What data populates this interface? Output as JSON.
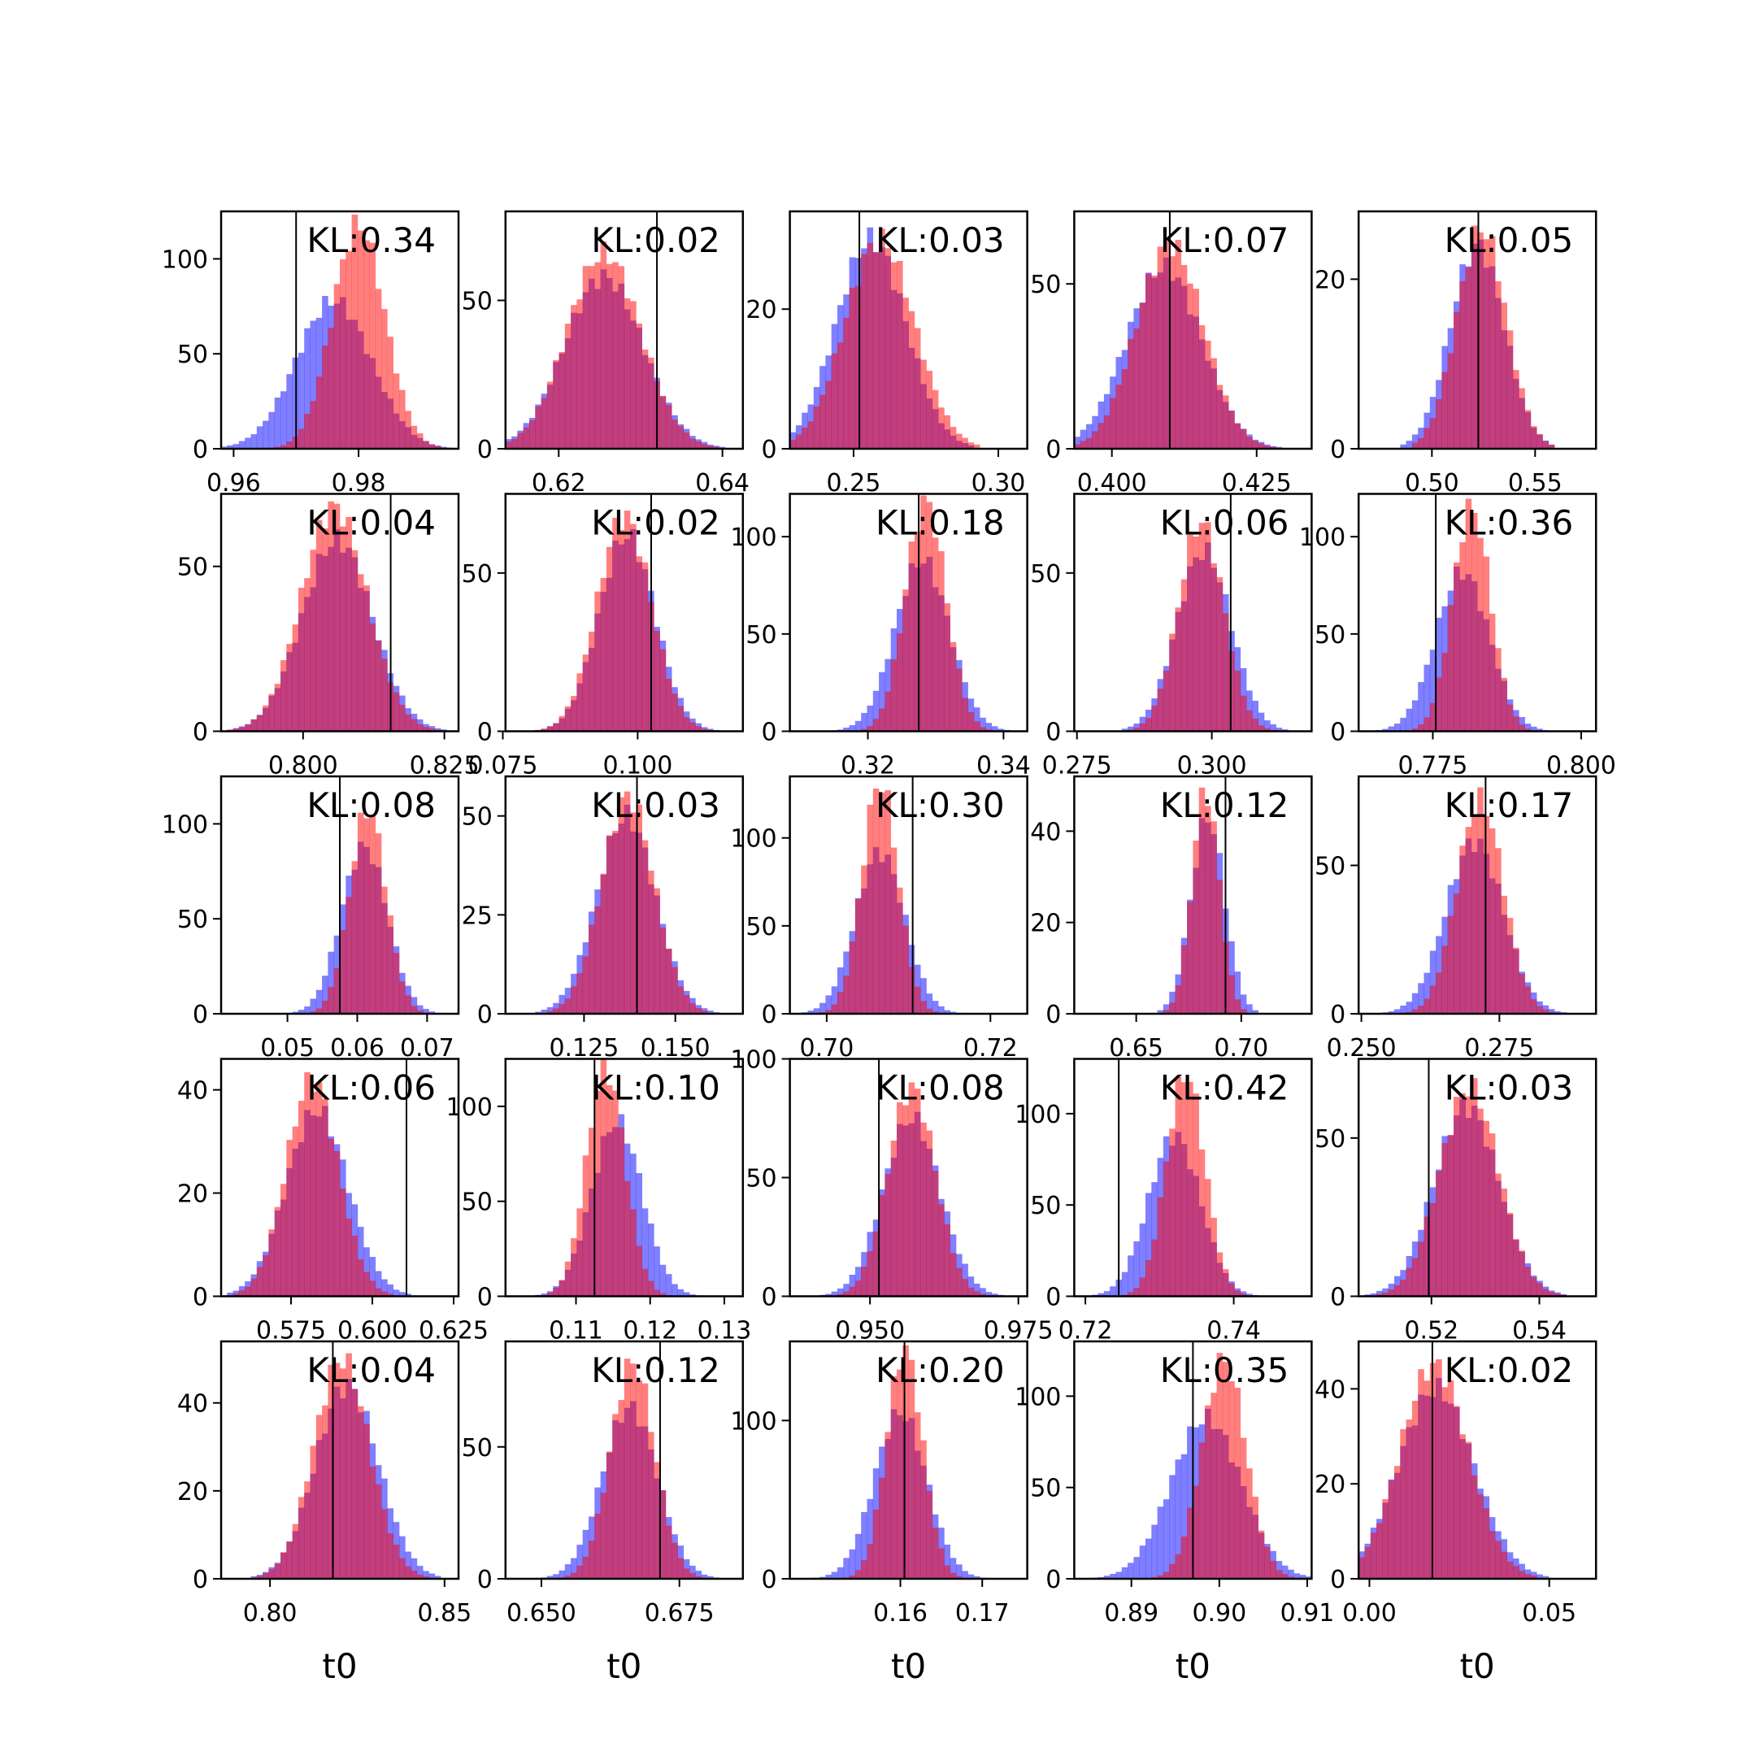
{
  "figure": {
    "xlabel": "t0"
  },
  "colors": {
    "red_series": "#ff0000",
    "blue_series": "#0000ff",
    "red_alpha": 0.5,
    "blue_alpha": 0.5,
    "overlap_appearance": "#8040c0",
    "truth_line": "#000000",
    "frame": "#000000"
  },
  "layout": {
    "rows": 5,
    "cols": 5,
    "kl_label_position": "top-right"
  },
  "chart_data": [
    {
      "type": "histogram",
      "row": 0,
      "col": 0,
      "kl_label": "KL:0.34",
      "truth": 0.97,
      "xlim": [
        0.958,
        0.996
      ],
      "xticks": [
        0.96,
        0.98
      ],
      "xtick_labels": [
        "0.96",
        "0.98"
      ],
      "ylim": [
        0,
        125
      ],
      "yticks": [
        0,
        50,
        100
      ],
      "ytick_labels": [
        "0",
        "50",
        "100"
      ],
      "red": {
        "mean": 0.98,
        "std": 0.0042,
        "peak": 118
      },
      "blue": {
        "mean": 0.976,
        "std": 0.006,
        "peak": 78
      }
    },
    {
      "type": "histogram",
      "row": 0,
      "col": 1,
      "kl_label": "KL:0.02",
      "truth": 0.632,
      "xlim": [
        0.6135,
        0.6425
      ],
      "xticks": [
        0.62,
        0.64
      ],
      "xtick_labels": [
        "0.62",
        "0.64"
      ],
      "ylim": [
        0,
        80
      ],
      "yticks": [
        0,
        50
      ],
      "ytick_labels": [
        "0",
        "50"
      ],
      "red": {
        "mean": 0.6255,
        "std": 0.0045,
        "peak": 66
      },
      "blue": {
        "mean": 0.6255,
        "std": 0.0048,
        "peak": 58
      }
    },
    {
      "type": "histogram",
      "row": 0,
      "col": 2,
      "kl_label": "KL:0.03",
      "truth": 0.252,
      "xlim": [
        0.228,
        0.31
      ],
      "xticks": [
        0.25,
        0.3
      ],
      "xtick_labels": [
        "0.25",
        "0.30"
      ],
      "ylim": [
        0,
        34
      ],
      "yticks": [
        0,
        20
      ],
      "ytick_labels": [
        "0",
        "20"
      ],
      "red": {
        "mean": 0.259,
        "std": 0.012,
        "peak": 30
      },
      "blue": {
        "mean": 0.256,
        "std": 0.012,
        "peak": 30
      }
    },
    {
      "type": "histogram",
      "row": 0,
      "col": 3,
      "kl_label": "KL:0.07",
      "truth": 0.41,
      "xlim": [
        0.3935,
        0.4345
      ],
      "xticks": [
        0.4,
        0.425
      ],
      "xtick_labels": [
        "0.400",
        "0.425"
      ],
      "ylim": [
        0,
        72
      ],
      "yticks": [
        0,
        50
      ],
      "ytick_labels": [
        "0",
        "50"
      ],
      "red": {
        "mean": 0.41,
        "std": 0.0058,
        "peak": 62
      },
      "blue": {
        "mean": 0.409,
        "std": 0.0065,
        "peak": 55
      }
    },
    {
      "type": "histogram",
      "row": 0,
      "col": 4,
      "kl_label": "KL:0.05",
      "truth": 0.5225,
      "xlim": [
        0.4645,
        0.5795
      ],
      "xticks": [
        0.5,
        0.55
      ],
      "xtick_labels": [
        "0.50",
        "0.55"
      ],
      "ylim": [
        0,
        28
      ],
      "yticks": [
        0,
        20
      ],
      "ytick_labels": [
        "0",
        "20"
      ],
      "red": {
        "mean": 0.524,
        "std": 0.012,
        "peak": 26
      },
      "blue": {
        "mean": 0.522,
        "std": 0.013,
        "peak": 24
      }
    },
    {
      "type": "histogram",
      "row": 1,
      "col": 0,
      "kl_label": "KL:0.04",
      "truth": 0.8155,
      "xlim": [
        0.7855,
        0.8275
      ],
      "xticks": [
        0.8,
        0.825
      ],
      "xtick_labels": [
        "0.800",
        "0.825"
      ],
      "ylim": [
        0,
        72
      ],
      "yticks": [
        0,
        50
      ],
      "ytick_labels": [
        "0",
        "50"
      ],
      "red": {
        "mean": 0.8055,
        "std": 0.0058,
        "peak": 68
      },
      "blue": {
        "mean": 0.806,
        "std": 0.0062,
        "peak": 58
      }
    },
    {
      "type": "histogram",
      "row": 1,
      "col": 1,
      "kl_label": "KL:0.02",
      "truth": 0.1025,
      "xlim": [
        0.0755,
        0.1195
      ],
      "xticks": [
        0.075,
        0.1
      ],
      "xtick_labels": [
        "0.075",
        "0.100"
      ],
      "ylim": [
        0,
        75
      ],
      "yticks": [
        0,
        50
      ],
      "ytick_labels": [
        "0",
        "50"
      ],
      "red": {
        "mean": 0.0975,
        "std": 0.005,
        "peak": 68
      },
      "blue": {
        "mean": 0.098,
        "std": 0.0052,
        "peak": 62
      }
    },
    {
      "type": "histogram",
      "row": 1,
      "col": 2,
      "kl_label": "KL:0.18",
      "truth": 0.3275,
      "xlim": [
        0.3085,
        0.3435
      ],
      "xticks": [
        0.32,
        0.34
      ],
      "xtick_labels": [
        "0.32",
        "0.34"
      ],
      "ylim": [
        0,
        122
      ],
      "yticks": [
        0,
        50,
        100
      ],
      "ytick_labels": [
        "0",
        "50",
        "100"
      ],
      "red": {
        "mean": 0.3285,
        "std": 0.003,
        "peak": 118
      },
      "blue": {
        "mean": 0.328,
        "std": 0.004,
        "peak": 88
      }
    },
    {
      "type": "histogram",
      "row": 1,
      "col": 3,
      "kl_label": "KL:0.06",
      "truth": 0.3035,
      "xlim": [
        0.2745,
        0.3185
      ],
      "xticks": [
        0.275,
        0.3
      ],
      "xtick_labels": [
        "0.275",
        "0.300"
      ],
      "ylim": [
        0,
        75
      ],
      "yticks": [
        0,
        50
      ],
      "ytick_labels": [
        "0",
        "50"
      ],
      "red": {
        "mean": 0.298,
        "std": 0.0042,
        "peak": 66
      },
      "blue": {
        "mean": 0.2985,
        "std": 0.005,
        "peak": 57
      }
    },
    {
      "type": "histogram",
      "row": 1,
      "col": 4,
      "kl_label": "KL:0.36",
      "truth": 0.7755,
      "xlim": [
        0.7625,
        0.8025
      ],
      "xticks": [
        0.775,
        0.8
      ],
      "xtick_labels": [
        "0.775",
        "0.800"
      ],
      "ylim": [
        0,
        122
      ],
      "yticks": [
        0,
        50,
        100
      ],
      "ytick_labels": [
        "0",
        "50",
        "100"
      ],
      "red": {
        "mean": 0.7815,
        "std": 0.0032,
        "peak": 115
      },
      "blue": {
        "mean": 0.78,
        "std": 0.0045,
        "peak": 82
      }
    },
    {
      "type": "histogram",
      "row": 2,
      "col": 0,
      "kl_label": "KL:0.08",
      "truth": 0.0575,
      "xlim": [
        0.0405,
        0.0745
      ],
      "xticks": [
        0.05,
        0.06,
        0.07
      ],
      "xtick_labels": [
        "0.05",
        "0.06",
        "0.07"
      ],
      "ylim": [
        0,
        125
      ],
      "yticks": [
        0,
        50,
        100
      ],
      "ytick_labels": [
        "0",
        "50",
        "100"
      ],
      "red": {
        "mean": 0.0615,
        "std": 0.0026,
        "peak": 108
      },
      "blue": {
        "mean": 0.061,
        "std": 0.0033,
        "peak": 88
      }
    },
    {
      "type": "histogram",
      "row": 2,
      "col": 1,
      "kl_label": "KL:0.03",
      "truth": 0.1395,
      "xlim": [
        0.1035,
        0.1685
      ],
      "xticks": [
        0.125,
        0.15
      ],
      "xtick_labels": [
        "0.125",
        "0.150"
      ],
      "ylim": [
        0,
        60
      ],
      "yticks": [
        0,
        25,
        50
      ],
      "ytick_labels": [
        "0",
        "25",
        "50"
      ],
      "red": {
        "mean": 0.137,
        "std": 0.0072,
        "peak": 55
      },
      "blue": {
        "mean": 0.1365,
        "std": 0.008,
        "peak": 50
      }
    },
    {
      "type": "histogram",
      "row": 2,
      "col": 2,
      "kl_label": "KL:0.30",
      "truth": 0.7105,
      "xlim": [
        0.6955,
        0.7245
      ],
      "xticks": [
        0.7,
        0.72
      ],
      "xtick_labels": [
        "0.70",
        "0.72"
      ],
      "ylim": [
        0,
        135
      ],
      "yticks": [
        0,
        50,
        100
      ],
      "ytick_labels": [
        "0",
        "50",
        "100"
      ],
      "red": {
        "mean": 0.7065,
        "std": 0.0022,
        "peak": 132
      },
      "blue": {
        "mean": 0.7065,
        "std": 0.003,
        "peak": 92
      }
    },
    {
      "type": "histogram",
      "row": 2,
      "col": 3,
      "kl_label": "KL:0.12",
      "truth": 0.6925,
      "xlim": [
        0.6205,
        0.7335
      ],
      "xticks": [
        0.65,
        0.7
      ],
      "xtick_labels": [
        "0.65",
        "0.70"
      ],
      "ylim": [
        0,
        52
      ],
      "yticks": [
        0,
        20,
        40
      ],
      "ytick_labels": [
        "0",
        "20",
        "40"
      ],
      "red": {
        "mean": 0.683,
        "std": 0.0065,
        "peak": 49
      },
      "blue": {
        "mean": 0.684,
        "std": 0.008,
        "peak": 43
      }
    },
    {
      "type": "histogram",
      "row": 2,
      "col": 4,
      "kl_label": "KL:0.17",
      "truth": 0.2725,
      "xlim": [
        0.2495,
        0.2925
      ],
      "xticks": [
        0.25,
        0.275
      ],
      "xtick_labels": [
        "0.250",
        "0.275"
      ],
      "ylim": [
        0,
        80
      ],
      "yticks": [
        0,
        50
      ],
      "ytick_labels": [
        "0",
        "50"
      ],
      "red": {
        "mean": 0.2715,
        "std": 0.0042,
        "peak": 72
      },
      "blue": {
        "mean": 0.2705,
        "std": 0.0052,
        "peak": 58
      }
    },
    {
      "type": "histogram",
      "row": 3,
      "col": 0,
      "kl_label": "KL:0.06",
      "truth": 0.6105,
      "xlim": [
        0.5535,
        0.6265
      ],
      "xticks": [
        0.575,
        0.6,
        0.625
      ],
      "xtick_labels": [
        "0.575",
        "0.600",
        "0.625"
      ],
      "ylim": [
        0,
        46
      ],
      "yticks": [
        0,
        20,
        40
      ],
      "ytick_labels": [
        "0",
        "20",
        "40"
      ],
      "red": {
        "mean": 0.5815,
        "std": 0.008,
        "peak": 42
      },
      "blue": {
        "mean": 0.583,
        "std": 0.0095,
        "peak": 36
      }
    },
    {
      "type": "histogram",
      "row": 3,
      "col": 1,
      "kl_label": "KL:0.10",
      "truth": 0.1125,
      "xlim": [
        0.1005,
        0.1325
      ],
      "xticks": [
        0.11,
        0.12,
        0.13
      ],
      "xtick_labels": [
        "0.11",
        "0.12",
        "0.13"
      ],
      "ylim": [
        0,
        125
      ],
      "yticks": [
        0,
        50,
        100
      ],
      "ytick_labels": [
        "0",
        "50",
        "100"
      ],
      "red": {
        "mean": 0.114,
        "std": 0.0026,
        "peak": 120
      },
      "blue": {
        "mean": 0.1155,
        "std": 0.0034,
        "peak": 92
      }
    },
    {
      "type": "histogram",
      "row": 3,
      "col": 2,
      "kl_label": "KL:0.08",
      "truth": 0.9515,
      "xlim": [
        0.9365,
        0.9765
      ],
      "xticks": [
        0.95,
        0.975
      ],
      "xtick_labels": [
        "0.950",
        "0.975"
      ],
      "ylim": [
        0,
        100
      ],
      "yticks": [
        0,
        50,
        100
      ],
      "ytick_labels": [
        "0",
        "50",
        "100"
      ],
      "red": {
        "mean": 0.957,
        "std": 0.004,
        "peak": 88
      },
      "blue": {
        "mean": 0.957,
        "std": 0.0048,
        "peak": 75
      }
    },
    {
      "type": "histogram",
      "row": 3,
      "col": 3,
      "kl_label": "KL:0.42",
      "truth": 0.7245,
      "xlim": [
        0.7185,
        0.7505
      ],
      "xticks": [
        0.72,
        0.74
      ],
      "xtick_labels": [
        "0.72",
        "0.74"
      ],
      "ylim": [
        0,
        130
      ],
      "yticks": [
        0,
        50,
        100
      ],
      "ytick_labels": [
        "0",
        "50",
        "100"
      ],
      "red": {
        "mean": 0.7335,
        "std": 0.0026,
        "peak": 122
      },
      "blue": {
        "mean": 0.732,
        "std": 0.0035,
        "peak": 88
      }
    },
    {
      "type": "histogram",
      "row": 3,
      "col": 4,
      "kl_label": "KL:0.03",
      "truth": 0.5195,
      "xlim": [
        0.5065,
        0.5505
      ],
      "xticks": [
        0.52,
        0.54
      ],
      "xtick_labels": [
        "0.52",
        "0.54"
      ],
      "ylim": [
        0,
        75
      ],
      "yticks": [
        0,
        50
      ],
      "ytick_labels": [
        "0",
        "50"
      ],
      "red": {
        "mean": 0.527,
        "std": 0.0055,
        "peak": 66
      },
      "blue": {
        "mean": 0.5265,
        "std": 0.006,
        "peak": 60
      }
    },
    {
      "type": "histogram",
      "row": 4,
      "col": 0,
      "kl_label": "KL:0.04",
      "truth": 0.818,
      "xlim": [
        0.786,
        0.854
      ],
      "xticks": [
        0.8,
        0.85
      ],
      "xtick_labels": [
        "0.80",
        "0.85"
      ],
      "ylim": [
        0,
        54
      ],
      "yticks": [
        0,
        20,
        40
      ],
      "ytick_labels": [
        "0",
        "20",
        "40"
      ],
      "red": {
        "mean": 0.8205,
        "std": 0.008,
        "peak": 50
      },
      "blue": {
        "mean": 0.822,
        "std": 0.009,
        "peak": 44
      }
    },
    {
      "type": "histogram",
      "row": 4,
      "col": 1,
      "kl_label": "KL:0.12",
      "truth": 0.6715,
      "xlim": [
        0.6435,
        0.6865
      ],
      "xticks": [
        0.65,
        0.675
      ],
      "xtick_labels": [
        "0.650",
        "0.675"
      ],
      "ylim": [
        0,
        90
      ],
      "yticks": [
        0,
        50
      ],
      "ytick_labels": [
        "0",
        "50"
      ],
      "red": {
        "mean": 0.6665,
        "std": 0.004,
        "peak": 82
      },
      "blue": {
        "mean": 0.666,
        "std": 0.005,
        "peak": 65
      }
    },
    {
      "type": "histogram",
      "row": 4,
      "col": 2,
      "kl_label": "KL:0.20",
      "truth": 0.1605,
      "xlim": [
        0.1465,
        0.1755
      ],
      "xticks": [
        0.16,
        0.17
      ],
      "xtick_labels": [
        "0.16",
        "0.17"
      ],
      "ylim": [
        0,
        150
      ],
      "yticks": [
        0,
        100
      ],
      "ytick_labels": [
        "0",
        "100"
      ],
      "red": {
        "mean": 0.1605,
        "std": 0.0022,
        "peak": 145
      },
      "blue": {
        "mean": 0.16,
        "std": 0.0032,
        "peak": 105
      }
    },
    {
      "type": "histogram",
      "row": 4,
      "col": 3,
      "kl_label": "KL:0.35",
      "truth": 0.897,
      "xlim": [
        0.8835,
        0.9105
      ],
      "xticks": [
        0.89,
        0.9,
        0.91
      ],
      "xtick_labels": [
        "0.89",
        "0.90",
        "0.91"
      ],
      "ylim": [
        0,
        130
      ],
      "yticks": [
        0,
        50,
        100
      ],
      "ytick_labels": [
        "0",
        "50",
        "100"
      ],
      "red": {
        "mean": 0.9005,
        "std": 0.0025,
        "peak": 120
      },
      "blue": {
        "mean": 0.8985,
        "std": 0.004,
        "peak": 88
      }
    },
    {
      "type": "histogram",
      "row": 4,
      "col": 4,
      "kl_label": "KL:0.02",
      "truth": 0.0175,
      "xlim": [
        -0.003,
        0.063
      ],
      "xticks": [
        0.0,
        0.05
      ],
      "xtick_labels": [
        "0.00",
        "0.05"
      ],
      "ylim": [
        0,
        50
      ],
      "yticks": [
        0,
        20,
        40
      ],
      "ytick_labels": [
        "0",
        "20",
        "40"
      ],
      "red": {
        "mean": 0.018,
        "std": 0.0095,
        "peak": 45
      },
      "blue": {
        "mean": 0.0185,
        "std": 0.0105,
        "peak": 40
      }
    }
  ]
}
